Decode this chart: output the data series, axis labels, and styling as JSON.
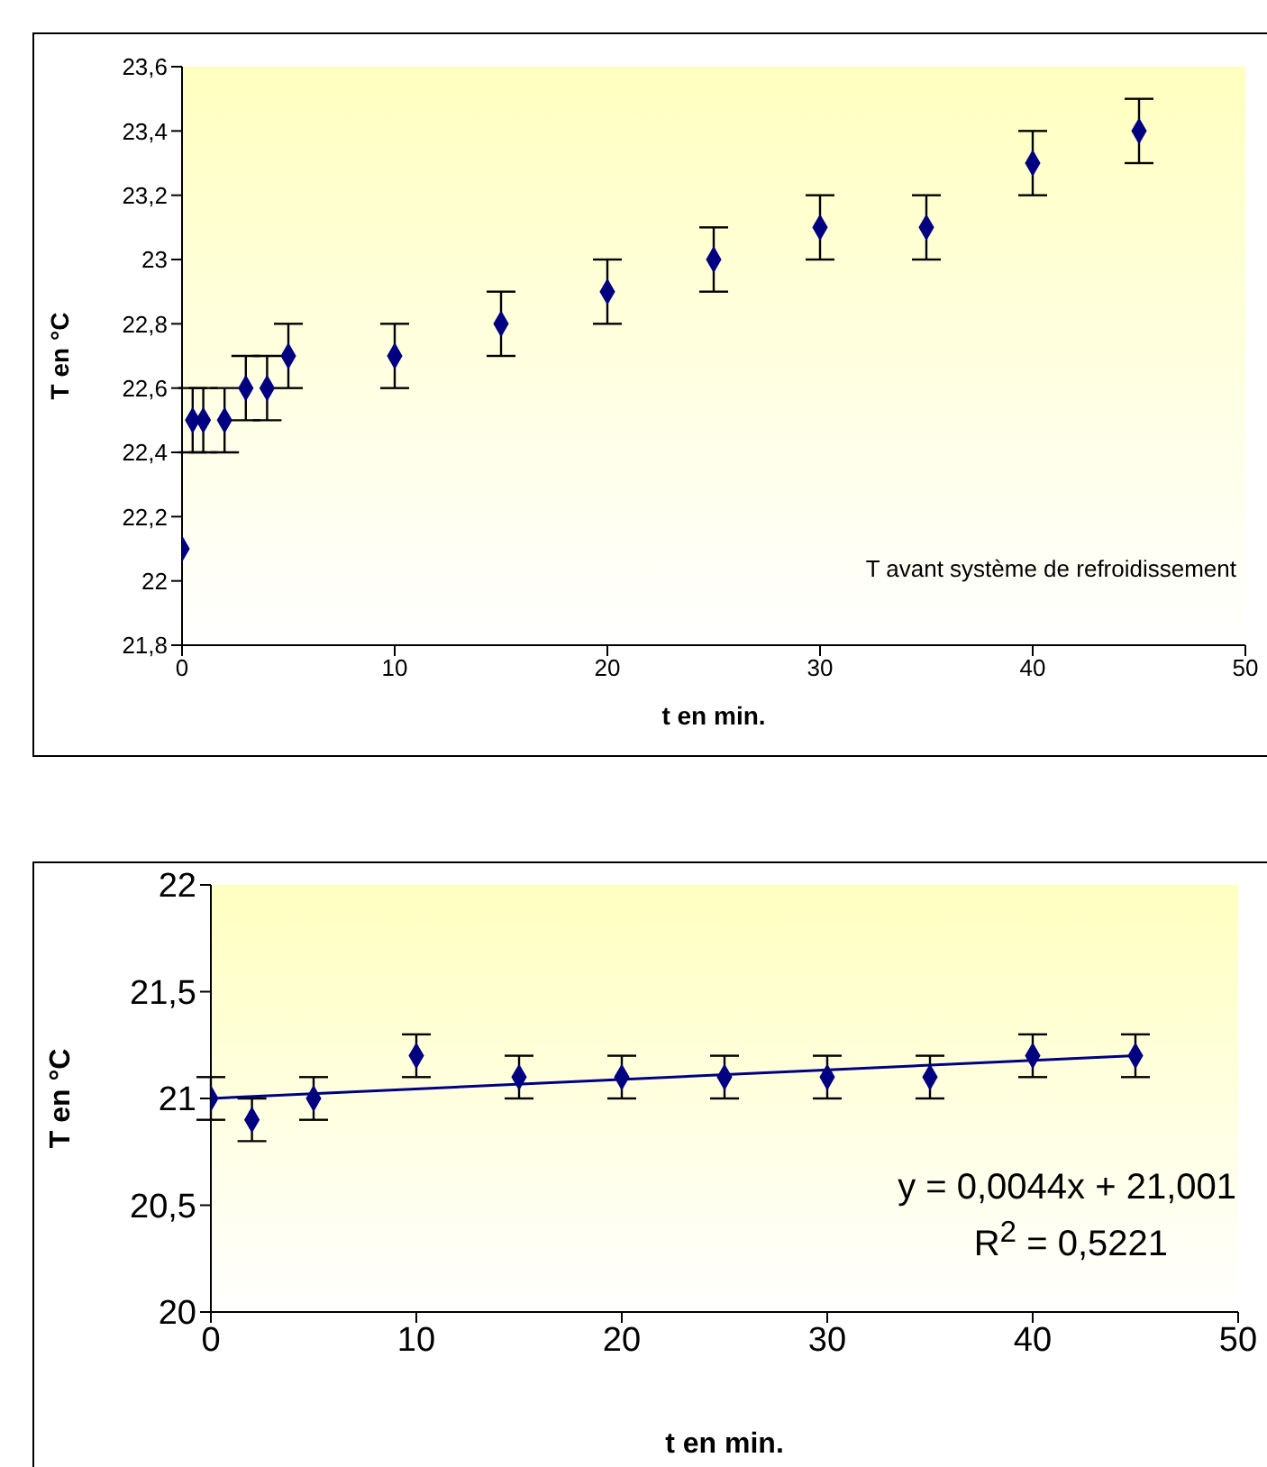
{
  "chart_data": [
    {
      "type": "scatter",
      "xlabel": "t en min.",
      "ylabel": "T en °C",
      "xlim": [
        0,
        50
      ],
      "xticks": [
        0,
        10,
        20,
        30,
        40,
        50
      ],
      "ylim": [
        21.8,
        23.6
      ],
      "yticks": [
        {
          "value": 21.8,
          "label": "21,8"
        },
        {
          "value": 22,
          "label": "22"
        },
        {
          "value": 22.2,
          "label": "22,2"
        },
        {
          "value": 22.4,
          "label": "22,4"
        },
        {
          "value": 22.6,
          "label": "22,6"
        },
        {
          "value": 22.8,
          "label": "22,8"
        },
        {
          "value": 23,
          "label": "23"
        },
        {
          "value": 23.2,
          "label": "23,2"
        },
        {
          "value": 23.4,
          "label": "23,4"
        },
        {
          "value": 23.6,
          "label": "23,6"
        }
      ],
      "marker": "diamond",
      "annotations": [
        "T avant système de refroidissement"
      ],
      "series": [
        {
          "color": "#000080",
          "x": [
            0,
            0.5,
            1,
            2,
            3,
            4,
            5,
            10,
            15,
            20,
            25,
            30,
            35,
            40,
            45
          ],
          "values": [
            22.1,
            22.5,
            22.5,
            22.5,
            22.6,
            22.6,
            22.7,
            22.7,
            22.8,
            22.9,
            23.0,
            23.1,
            23.1,
            23.3,
            23.4
          ],
          "errors": [
            null,
            0.1,
            0.1,
            0.1,
            0.1,
            0.1,
            0.1,
            0.1,
            0.1,
            0.1,
            0.1,
            0.1,
            0.1,
            0.1,
            0.1
          ]
        }
      ]
    },
    {
      "type": "scatter",
      "xlabel": "t en min.",
      "ylabel": "T en °C",
      "xlim": [
        0,
        50
      ],
      "xticks": [
        0,
        10,
        20,
        30,
        40,
        50
      ],
      "ylim": [
        20,
        22
      ],
      "yticks": [
        {
          "value": 20,
          "label": "20"
        },
        {
          "value": 20.5,
          "label": "20,5"
        },
        {
          "value": 21,
          "label": "21"
        },
        {
          "value": 21.5,
          "label": "21,5"
        },
        {
          "value": 22,
          "label": "22"
        }
      ],
      "marker": "diamond",
      "annotations": [
        "y = 0,0044x + 21,001",
        "R$^{2}$ = 0,5221"
      ],
      "series": [
        {
          "color": "#000080",
          "x": [
            0,
            2,
            5,
            10,
            15,
            20,
            25,
            30,
            35,
            40,
            45
          ],
          "values": [
            21.0,
            20.9,
            21.0,
            21.2,
            21.1,
            21.1,
            21.1,
            21.1,
            21.1,
            21.2,
            21.2
          ],
          "errors": [
            0.1,
            0.1,
            0.1,
            0.1,
            0.1,
            0.1,
            0.1,
            0.1,
            0.1,
            0.1,
            0.1
          ]
        },
        {
          "type": "line",
          "color": "#000080",
          "marker": "none",
          "x": [
            0,
            45
          ],
          "values": [
            21.0,
            21.2
          ]
        }
      ]
    }
  ]
}
